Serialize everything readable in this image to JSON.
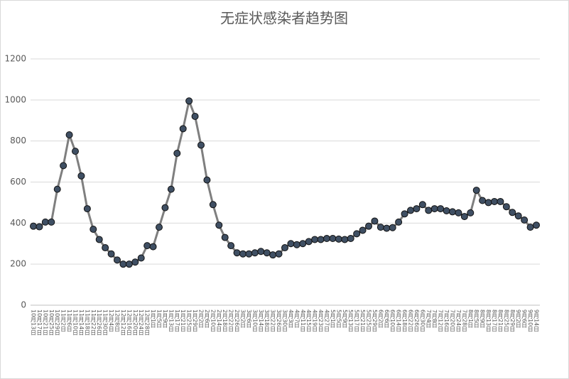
{
  "chart_data": {
    "type": "line",
    "title": "无症状感染者趋势图",
    "categories": [
      "10月13日",
      "10月17日",
      "10月21日",
      "10月25日",
      "10月29日",
      "11月2日",
      "11月6日",
      "11月10日",
      "11月14日",
      "11月18日",
      "11月22日",
      "11月26日",
      "11月30日",
      "12月4日",
      "12月8日",
      "12月12日",
      "12月16日",
      "12月20日",
      "12月24日",
      "12月28日",
      "1月1日",
      "1月5日",
      "1月9日",
      "1月13日",
      "1月17日",
      "1月21日",
      "1月25日",
      "1月29日",
      "2月2日",
      "2月6日",
      "2月10日",
      "2月14日",
      "2月18日",
      "2月22日",
      "2月26日",
      "3月2日",
      "3月6日",
      "3月10日",
      "3月14日",
      "3月18日",
      "3月22日",
      "3月26日",
      "3月30日",
      "4月3日",
      "4月7日",
      "4月11日",
      "4月15日",
      "4月19日",
      "4月23日",
      "4月27日",
      "5月1日",
      "5月5日",
      "5月9日",
      "5月13日",
      "5月17日",
      "5月21日",
      "5月25日",
      "5月29日",
      "6月2日",
      "6月6日",
      "6月10日",
      "6月14日",
      "6月18日",
      "6月22日",
      "6月26日",
      "6月30日",
      "7月4日",
      "7月8日",
      "7月12日",
      "7月16日",
      "7月20日",
      "7月24日",
      "7月28日",
      "8月1日",
      "8月5日",
      "8月9日",
      "8月13日",
      "8月17日",
      "8月21日",
      "8月25日",
      "8月29日",
      "9月2日",
      "9月6日",
      "9月10日",
      "9月14日"
    ],
    "series": [
      {
        "name": "无症状感染者",
        "color": "#7f7f7f",
        "marker_color": "#3f4f63",
        "values": [
          385,
          382,
          405,
          405,
          565,
          680,
          830,
          750,
          630,
          470,
          370,
          320,
          280,
          250,
          220,
          200,
          200,
          210,
          230,
          290,
          285,
          380,
          475,
          565,
          740,
          860,
          995,
          920,
          780,
          610,
          490,
          390,
          330,
          290,
          255,
          250,
          250,
          255,
          262,
          255,
          245,
          250,
          280,
          300,
          295,
          300,
          310,
          320,
          320,
          325,
          325,
          322,
          320,
          325,
          348,
          365,
          385,
          410,
          380,
          375,
          378,
          405,
          445,
          462,
          470,
          490,
          462,
          470,
          470,
          460,
          455,
          450,
          432,
          450,
          560,
          510,
          500,
          505,
          505,
          480,
          452,
          435,
          415,
          380,
          390
        ]
      }
    ],
    "ylim": [
      0,
      1200
    ],
    "yticks": [
      0,
      200,
      400,
      600,
      800,
      1000,
      1200
    ],
    "grid": true
  }
}
